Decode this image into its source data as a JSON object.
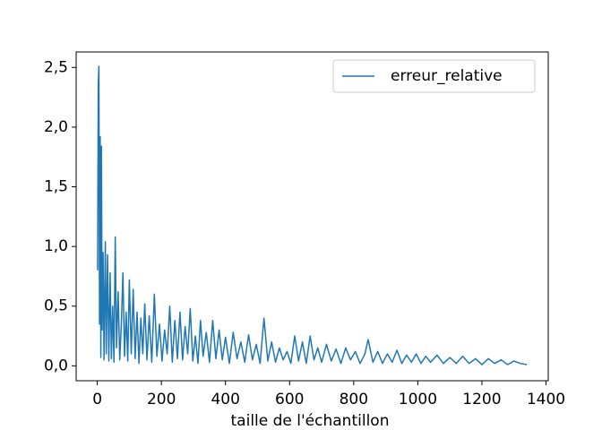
{
  "chart_data": {
    "type": "line",
    "x_label": "taille de l'échantillon",
    "x": [
      1,
      3,
      5,
      7,
      9,
      11,
      13,
      15,
      18,
      21,
      25,
      28,
      32,
      36,
      40,
      44,
      48,
      52,
      56,
      60,
      65,
      70,
      75,
      80,
      85,
      90,
      95,
      100,
      106,
      112,
      118,
      124,
      130,
      136,
      142,
      148,
      155,
      162,
      170,
      178,
      186,
      194,
      202,
      210,
      218,
      226,
      234,
      242,
      250,
      258,
      266,
      274,
      282,
      290,
      298,
      306,
      314,
      322,
      330,
      340,
      350,
      360,
      370,
      380,
      390,
      400,
      412,
      424,
      436,
      448,
      460,
      472,
      484,
      496,
      508,
      520,
      532,
      544,
      556,
      568,
      580,
      592,
      604,
      616,
      628,
      640,
      652,
      664,
      676,
      688,
      700,
      715,
      730,
      745,
      760,
      775,
      790,
      805,
      820,
      835,
      845,
      860,
      875,
      890,
      905,
      920,
      935,
      950,
      965,
      980,
      995,
      1010,
      1025,
      1040,
      1060,
      1080,
      1100,
      1120,
      1140,
      1160,
      1180,
      1200,
      1220,
      1240,
      1260,
      1280,
      1300,
      1320,
      1340
    ],
    "series": [
      {
        "name": "erreur_relative",
        "color": "#1f77b4",
        "values": [
          0.8,
          2.36,
          2.51,
          0.35,
          1.92,
          0.07,
          1.84,
          0.3,
          0.95,
          0.05,
          1.04,
          0.1,
          0.93,
          0.04,
          0.78,
          0.06,
          0.5,
          0.03,
          1.08,
          0.15,
          0.62,
          0.05,
          0.35,
          0.78,
          0.08,
          0.45,
          0.04,
          0.72,
          0.1,
          0.64,
          0.06,
          0.45,
          0.02,
          0.4,
          0.1,
          0.52,
          0.05,
          0.42,
          0.03,
          0.6,
          0.08,
          0.35,
          0.04,
          0.3,
          0.1,
          0.5,
          0.03,
          0.38,
          0.06,
          0.45,
          0.05,
          0.33,
          0.1,
          0.48,
          0.04,
          0.25,
          0.02,
          0.38,
          0.08,
          0.28,
          0.03,
          0.38,
          0.06,
          0.3,
          0.05,
          0.24,
          0.02,
          0.28,
          0.06,
          0.2,
          0.03,
          0.26,
          0.05,
          0.18,
          0.02,
          0.4,
          0.04,
          0.2,
          0.03,
          0.15,
          0.05,
          0.12,
          0.02,
          0.25,
          0.04,
          0.2,
          0.02,
          0.25,
          0.05,
          0.15,
          0.03,
          0.18,
          0.04,
          0.14,
          0.02,
          0.15,
          0.05,
          0.12,
          0.02,
          0.1,
          0.22,
          0.03,
          0.12,
          0.02,
          0.1,
          0.03,
          0.13,
          0.02,
          0.09,
          0.03,
          0.1,
          0.02,
          0.08,
          0.03,
          0.09,
          0.02,
          0.07,
          0.02,
          0.08,
          0.02,
          0.06,
          0.01,
          0.06,
          0.02,
          0.05,
          0.01,
          0.04,
          0.02,
          0.01
        ]
      }
    ],
    "xlim": [
      -66,
      1407
    ],
    "ylim": [
      -0.125,
      2.63
    ],
    "xticks": [
      0,
      200,
      400,
      600,
      800,
      1000,
      1200,
      1400
    ],
    "yticks": [
      {
        "value": 0,
        "label": "0,0"
      },
      {
        "value": 0.5,
        "label": "0,5"
      },
      {
        "value": 1,
        "label": "1,0"
      },
      {
        "value": 1.5,
        "label": "1,5"
      },
      {
        "value": 2,
        "label": "2,0"
      },
      {
        "value": 2.5,
        "label": "2,5"
      }
    ],
    "legend": "upper right"
  }
}
